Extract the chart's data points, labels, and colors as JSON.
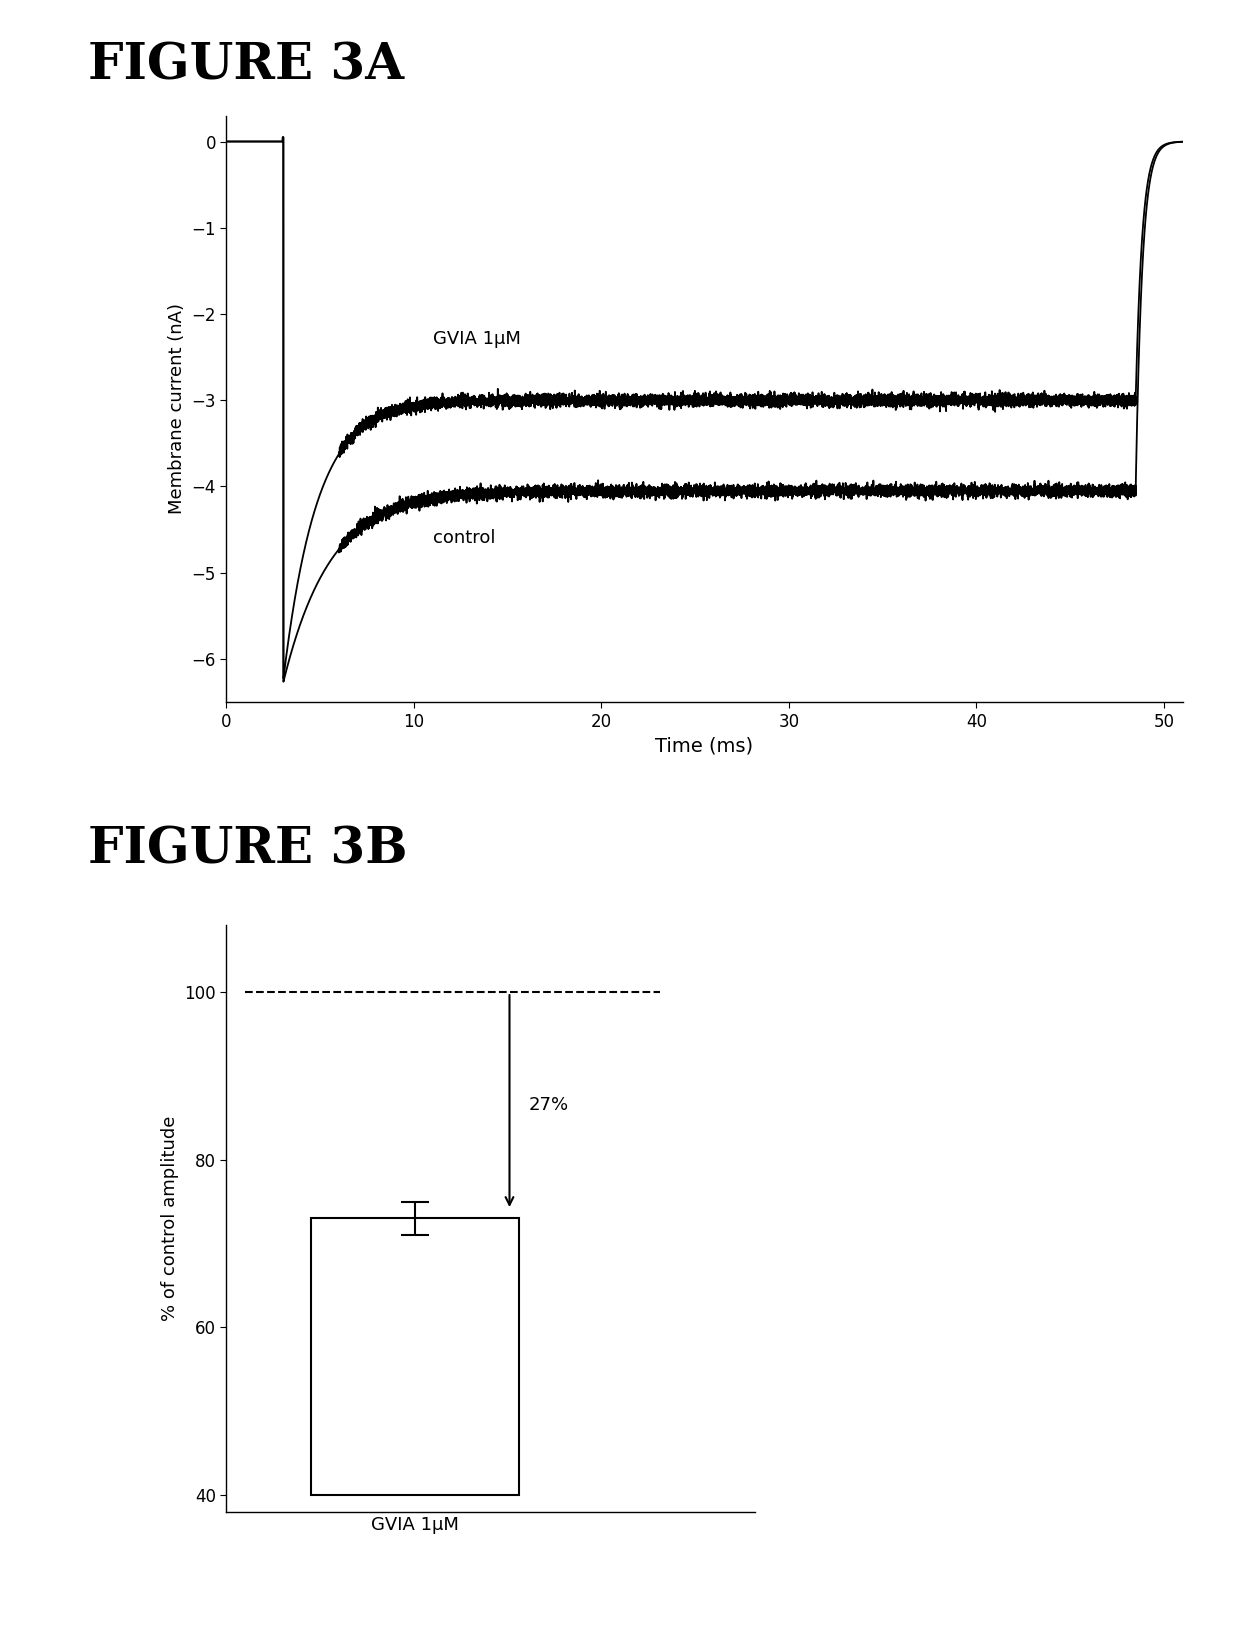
{
  "fig3a_title": "FIGURE 3A",
  "fig3b_title": "FIGURE 3B",
  "panel_a": {
    "xlim": [
      0,
      51
    ],
    "ylim": [
      -6.5,
      0.3
    ],
    "xticks": [
      0,
      10,
      20,
      30,
      40,
      50
    ],
    "yticks": [
      0,
      -1,
      -2,
      -3,
      -4,
      -5,
      -6
    ],
    "xlabel": "Time (ms)",
    "ylabel": "Membrane current (nA)",
    "gvia_label": "GVIA 1μM",
    "control_label": "control",
    "gvia_steady": -3.0,
    "control_steady": -4.05,
    "pulse_start": 3.0,
    "pulse_end": 48.5,
    "decay_tau_gvia": 1.8,
    "decay_tau_ctrl": 2.5
  },
  "panel_b": {
    "bar_value": 73,
    "bar_error": 2,
    "dashed_line_y": 100,
    "arrow_label": "27%",
    "bar_bottom": 40,
    "ylim": [
      38,
      108
    ],
    "yticks": [
      40,
      60,
      80,
      100
    ],
    "xlabel": "GVIA 1μM",
    "ylabel": "% of control amplitude"
  }
}
